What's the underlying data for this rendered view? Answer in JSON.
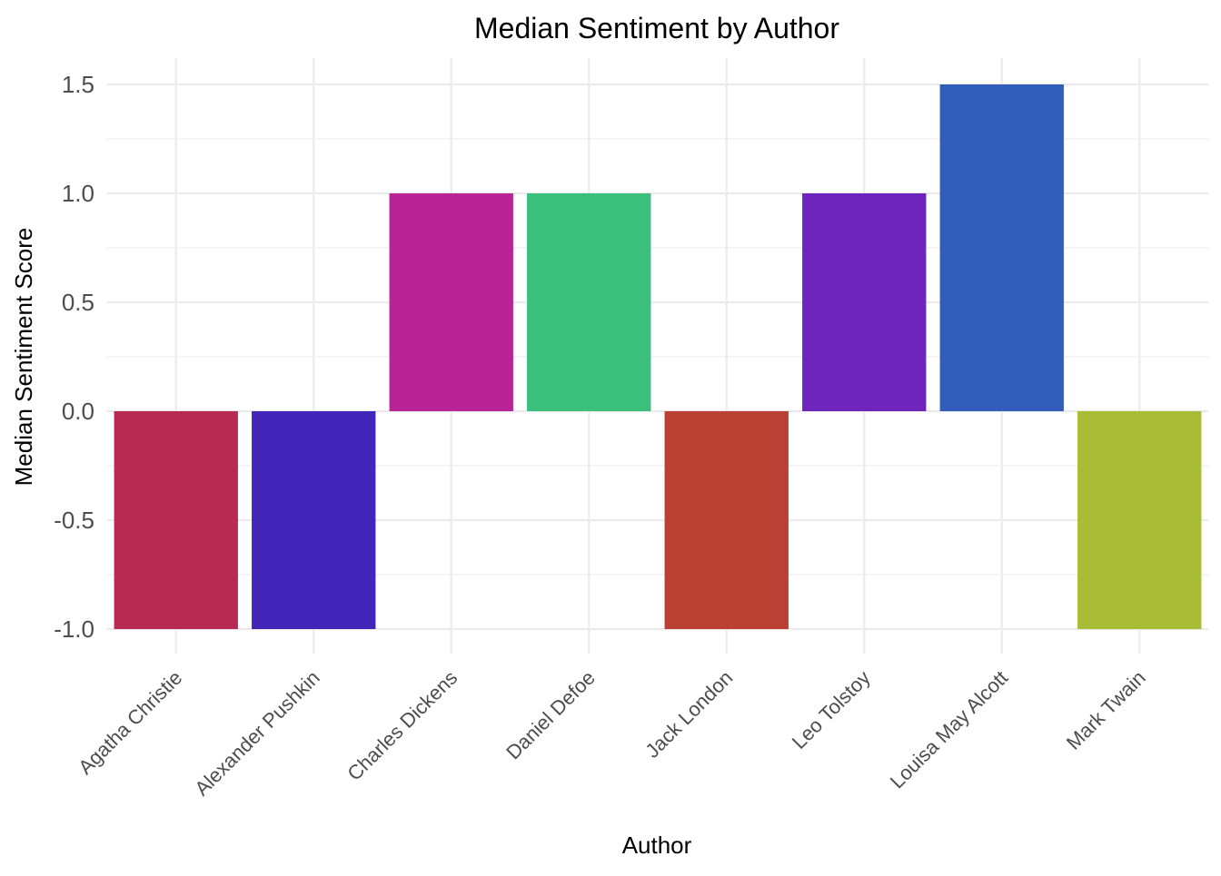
{
  "chart_data": {
    "type": "bar",
    "title": "Median Sentiment by Author",
    "xlabel": "Author",
    "ylabel": "Median Sentiment Score",
    "categories": [
      "Agatha Christie",
      "Alexander Pushkin",
      "Charles Dickens",
      "Daniel Defoe",
      "Jack London",
      "Leo Tolstoy",
      "Louisa May Alcott",
      "Mark Twain"
    ],
    "values": [
      -1.0,
      -1.0,
      1.0,
      1.0,
      -1.0,
      1.0,
      1.5,
      -1.0
    ],
    "colors": [
      "#b82a53",
      "#4226ba",
      "#b82496",
      "#3abf7d",
      "#b94032",
      "#6e25bb",
      "#325dba",
      "#a8bd35"
    ],
    "ylim": [
      -1.0,
      1.5
    ],
    "y_ticks": [
      "-1.0",
      "-0.5",
      "0.0",
      "0.5",
      "1.0",
      "1.5"
    ],
    "grid": true,
    "legend": "none"
  }
}
